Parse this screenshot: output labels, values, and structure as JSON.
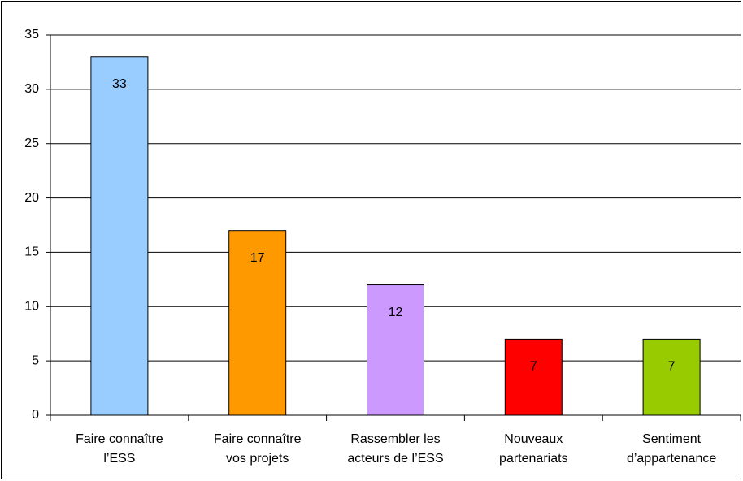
{
  "chart_data": {
    "type": "bar",
    "categories": [
      [
        "Faire connaître",
        "l’ESS"
      ],
      [
        "Faire connaître",
        "vos projets"
      ],
      [
        "Rassembler les",
        "acteurs de l’ESS"
      ],
      [
        "Nouveaux",
        "partenariats"
      ],
      [
        "Sentiment",
        "d’appartenance"
      ]
    ],
    "values": [
      33,
      17,
      12,
      7,
      7
    ],
    "colors": [
      "#99ccff",
      "#ff9900",
      "#cc99ff",
      "#ff0000",
      "#99cc00"
    ],
    "ylim": [
      0,
      35
    ],
    "yticks": [
      0,
      5,
      10,
      15,
      20,
      25,
      30,
      35
    ],
    "grid": true
  }
}
